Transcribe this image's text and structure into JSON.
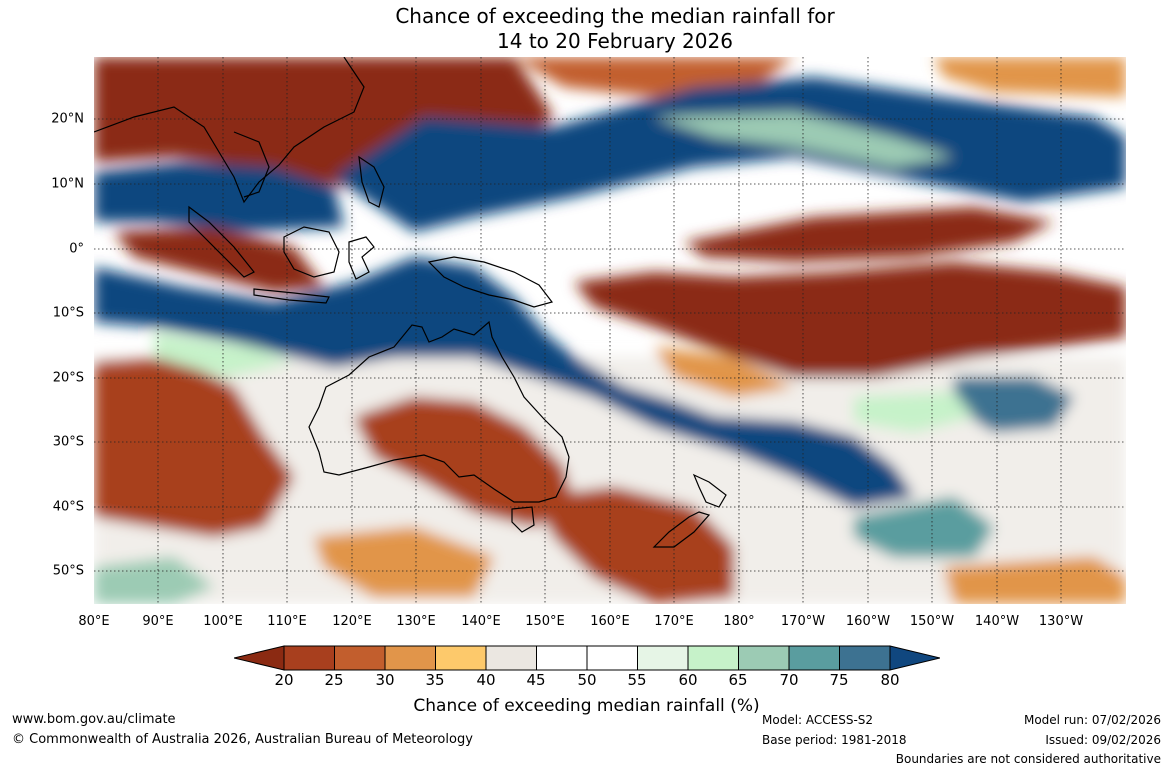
{
  "title": {
    "line1": "Chance of exceeding the median rainfall for",
    "line2": "14 to 20 February 2026"
  },
  "map": {
    "region": "Australia and western/central Pacific",
    "lat_labels": [
      "20°N",
      "10°N",
      "0°",
      "10°S",
      "20°S",
      "30°S",
      "40°S",
      "50°S"
    ],
    "lon_labels": [
      "80°E",
      "90°E",
      "100°E",
      "110°E",
      "120°E",
      "130°E",
      "140°E",
      "150°E",
      "160°E",
      "170°E",
      "180°",
      "170°W",
      "160°W",
      "150°W",
      "140°W",
      "130°W"
    ]
  },
  "legend": {
    "title": "Chance of exceeding median rainfall (%)",
    "ticks": [
      "20",
      "25",
      "30",
      "35",
      "40",
      "45",
      "50",
      "55",
      "60",
      "65",
      "70",
      "75",
      "80"
    ],
    "colors": [
      "#8b2a12",
      "#a83f1e",
      "#c25e2d",
      "#e1954a",
      "#fdc96b",
      "#ebe7e1",
      "#ffffff",
      "#ffffff",
      "#e6f5e6",
      "#c6f2c9",
      "#9ccbb4",
      "#5a9d9f",
      "#3d7291",
      "#10477f"
    ]
  },
  "footer": {
    "website": "www.bom.gov.au/climate",
    "copyright": "© Commonwealth of Australia 2026, Australian Bureau of Meteorology",
    "model": "Model: ACCESS-S2",
    "base_period": "Base period: 1981-2018",
    "model_run": "Model run: 07/02/2026",
    "issued": "Issued: 09/02/2026",
    "disclaimer": "Boundaries are not considered authoritative"
  }
}
